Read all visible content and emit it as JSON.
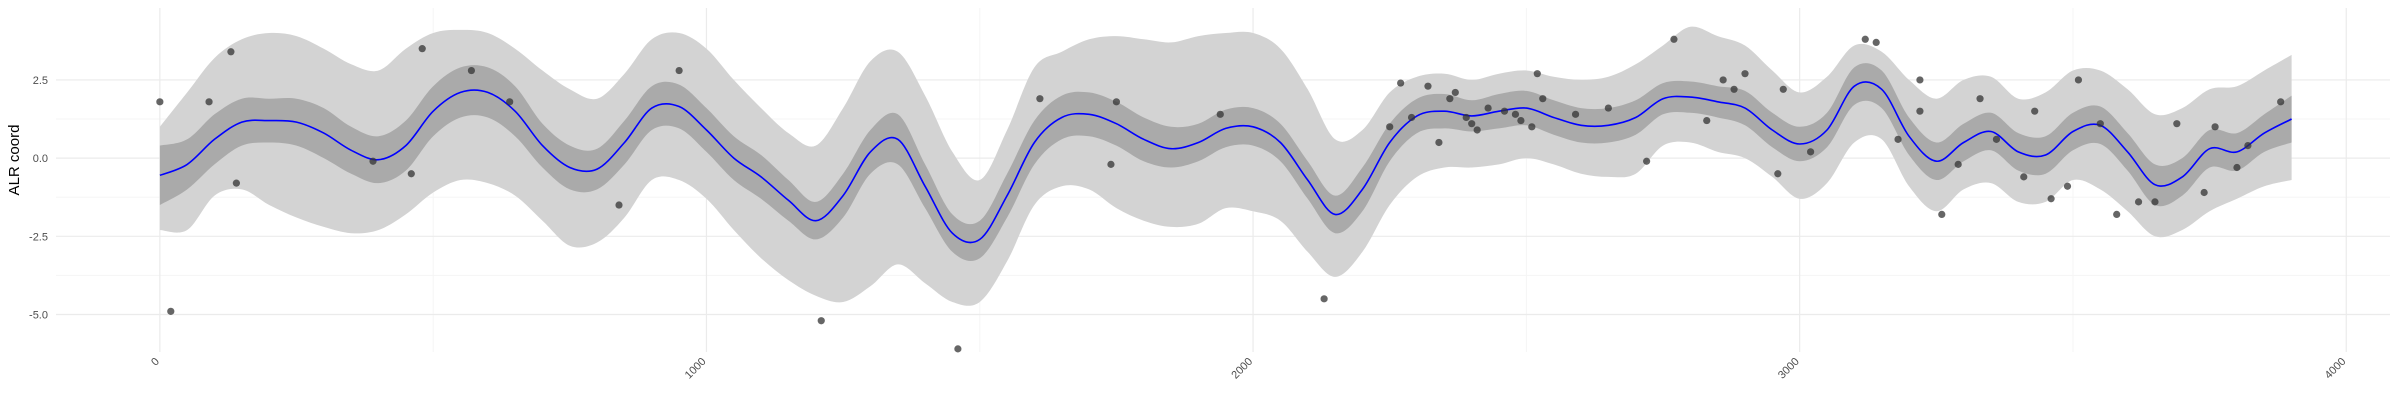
{
  "chart_data": {
    "type": "line",
    "title": "",
    "xlabel": "",
    "ylabel": "ALR coord",
    "xlim": [
      -190,
      4080
    ],
    "ylim": [
      -6.2,
      4.8
    ],
    "x_ticks": [
      0,
      1000,
      2000,
      3000,
      4000
    ],
    "x_tick_labels": [
      "0",
      "1000",
      "2000",
      "3000",
      "4000"
    ],
    "y_ticks": [
      -5.0,
      -2.5,
      0.0,
      2.5
    ],
    "y_tick_labels": [
      "-5.0",
      "-2.5",
      "0.0",
      "2.5"
    ],
    "grid": true,
    "colors": {
      "line": "#0000ff",
      "inner_band": "#aaaaaa",
      "outer_band": "#d3d3d3",
      "points": "#333333",
      "grid_major": "#ebebeb",
      "grid_minor": "#f5f5f5"
    },
    "series": [
      {
        "role": "mean",
        "x": [
          0,
          50,
          100,
          150,
          200,
          250,
          300,
          350,
          400,
          450,
          500,
          550,
          600,
          650,
          700,
          750,
          800,
          850,
          900,
          950,
          1000,
          1050,
          1100,
          1150,
          1200,
          1250,
          1300,
          1350,
          1400,
          1450,
          1500,
          1550,
          1600,
          1650,
          1700,
          1750,
          1800,
          1850,
          1900,
          1950,
          2000,
          2050,
          2100,
          2150,
          2200,
          2250,
          2300,
          2350,
          2400,
          2450,
          2500,
          2550,
          2600,
          2650,
          2700,
          2750,
          2800,
          2850,
          2900,
          2950,
          3000,
          3050,
          3100,
          3150,
          3200,
          3250,
          3300,
          3350,
          3400,
          3450,
          3500,
          3550,
          3600,
          3650,
          3700,
          3750,
          3800,
          3850,
          3900
        ],
        "y": [
          -0.55,
          -0.2,
          0.6,
          1.15,
          1.2,
          1.15,
          0.8,
          0.25,
          -0.05,
          0.4,
          1.5,
          2.1,
          2.1,
          1.5,
          0.4,
          -0.3,
          -0.35,
          0.5,
          1.6,
          1.65,
          0.9,
          0.0,
          -0.6,
          -1.35,
          -2.0,
          -1.2,
          0.2,
          0.6,
          -0.9,
          -2.4,
          -2.6,
          -1.2,
          0.5,
          1.3,
          1.4,
          1.1,
          0.6,
          0.3,
          0.5,
          0.95,
          1.0,
          0.5,
          -0.7,
          -1.8,
          -1.0,
          0.5,
          1.35,
          1.5,
          1.35,
          1.5,
          1.6,
          1.3,
          1.05,
          1.05,
          1.3,
          1.9,
          1.95,
          1.8,
          1.6,
          0.9,
          0.45,
          0.9,
          2.3,
          2.2,
          0.7,
          -0.1,
          0.5,
          0.85,
          0.2,
          0.1,
          0.85,
          1.05,
          0.2,
          -0.85,
          -0.6,
          0.3,
          0.2,
          0.8,
          1.25
        ]
      },
      {
        "role": "inner_band",
        "lower": [
          -1.5,
          -1.0,
          -0.2,
          0.4,
          0.5,
          0.4,
          0.0,
          -0.5,
          -0.8,
          -0.4,
          0.7,
          1.3,
          1.3,
          0.7,
          -0.3,
          -1.0,
          -1.0,
          -0.2,
          0.9,
          0.95,
          0.2,
          -0.7,
          -1.3,
          -2.0,
          -2.6,
          -1.9,
          -0.5,
          -0.2,
          -1.6,
          -3.0,
          -3.2,
          -1.9,
          -0.2,
          0.6,
          0.7,
          0.4,
          -0.1,
          -0.3,
          -0.1,
          0.35,
          0.4,
          -0.1,
          -1.3,
          -2.4,
          -1.7,
          -0.1,
          0.8,
          0.95,
          0.85,
          0.95,
          1.05,
          0.75,
          0.5,
          0.5,
          0.75,
          1.4,
          1.45,
          1.3,
          1.05,
          0.35,
          -0.1,
          0.35,
          1.7,
          1.6,
          0.1,
          -0.7,
          -0.1,
          0.25,
          -0.4,
          -0.5,
          0.25,
          0.45,
          -0.4,
          -1.5,
          -1.2,
          -0.3,
          -0.4,
          0.2,
          0.5
        ],
        "upper": [
          0.4,
          0.6,
          1.4,
          1.9,
          1.9,
          1.9,
          1.6,
          1.0,
          0.7,
          1.2,
          2.3,
          2.9,
          2.9,
          2.3,
          1.1,
          0.4,
          0.3,
          1.2,
          2.3,
          2.35,
          1.6,
          0.7,
          0.1,
          -0.7,
          -1.4,
          -0.5,
          0.9,
          1.4,
          -0.2,
          -1.8,
          -2.0,
          -0.5,
          1.2,
          2.0,
          2.1,
          1.8,
          1.3,
          1.0,
          1.1,
          1.55,
          1.6,
          1.1,
          -0.1,
          -1.2,
          -0.3,
          1.1,
          1.9,
          2.05,
          1.85,
          2.05,
          2.15,
          1.85,
          1.6,
          1.6,
          1.85,
          2.4,
          2.45,
          2.3,
          2.15,
          1.45,
          1.0,
          1.45,
          2.9,
          2.8,
          1.3,
          0.5,
          1.1,
          1.45,
          0.8,
          0.7,
          1.45,
          1.65,
          0.8,
          -0.2,
          0.0,
          0.9,
          0.8,
          1.4,
          2.0
        ]
      },
      {
        "role": "outer_band",
        "lower": [
          -2.3,
          -2.3,
          -1.2,
          -1.0,
          -1.5,
          -1.9,
          -2.2,
          -2.4,
          -2.3,
          -1.8,
          -1.1,
          -0.7,
          -0.8,
          -1.2,
          -2.0,
          -2.8,
          -2.7,
          -1.9,
          -0.7,
          -0.7,
          -1.3,
          -2.3,
          -3.2,
          -3.9,
          -4.4,
          -4.6,
          -4.1,
          -3.4,
          -4.0,
          -4.6,
          -4.6,
          -3.3,
          -1.5,
          -0.9,
          -1.0,
          -1.6,
          -2.0,
          -2.2,
          -2.1,
          -1.6,
          -1.7,
          -2.0,
          -3.0,
          -3.8,
          -3.0,
          -1.5,
          -0.6,
          -0.3,
          -0.3,
          -0.2,
          0.0,
          -0.2,
          -0.5,
          -0.6,
          -0.5,
          0.4,
          0.5,
          0.2,
          0.0,
          -0.6,
          -1.3,
          -0.8,
          0.5,
          0.6,
          -0.9,
          -1.7,
          -1.0,
          -0.8,
          -1.4,
          -1.4,
          -0.7,
          -1.0,
          -1.7,
          -2.5,
          -2.3,
          -1.7,
          -1.3,
          -0.9,
          -0.7
        ],
        "upper": [
          1.0,
          2.1,
          3.2,
          3.8,
          4.0,
          3.9,
          3.5,
          3.0,
          2.8,
          3.5,
          4.0,
          4.1,
          4.0,
          3.5,
          2.8,
          2.2,
          1.9,
          2.7,
          3.8,
          4.0,
          3.5,
          2.5,
          1.6,
          0.8,
          0.4,
          1.6,
          3.1,
          3.4,
          2.0,
          0.2,
          -0.7,
          0.9,
          2.9,
          3.4,
          3.8,
          3.9,
          3.8,
          3.7,
          3.9,
          4.0,
          4.0,
          3.5,
          2.2,
          0.6,
          0.9,
          2.1,
          2.6,
          2.7,
          2.5,
          2.7,
          2.8,
          2.6,
          2.5,
          2.6,
          3.0,
          3.6,
          4.2,
          3.9,
          3.6,
          2.8,
          2.1,
          2.6,
          3.6,
          3.4,
          2.5,
          1.9,
          2.5,
          2.6,
          1.9,
          2.1,
          2.8,
          2.8,
          2.2,
          1.4,
          1.6,
          2.2,
          2.3,
          2.8,
          3.3
        ]
      },
      {
        "role": "observations",
        "points": [
          [
            0,
            1.8
          ],
          [
            20,
            -4.9
          ],
          [
            90,
            1.8
          ],
          [
            130,
            3.4
          ],
          [
            140,
            -0.8
          ],
          [
            390,
            -0.1
          ],
          [
            460,
            -0.5
          ],
          [
            480,
            3.5
          ],
          [
            570,
            2.8
          ],
          [
            640,
            1.8
          ],
          [
            840,
            -1.5
          ],
          [
            950,
            2.8
          ],
          [
            1210,
            -5.2
          ],
          [
            1460,
            -6.1
          ],
          [
            1610,
            1.9
          ],
          [
            1740,
            -0.2
          ],
          [
            1750,
            1.8
          ],
          [
            1940,
            1.4
          ],
          [
            2130,
            -4.5
          ],
          [
            2250,
            1.0
          ],
          [
            2270,
            2.4
          ],
          [
            2290,
            1.3
          ],
          [
            2320,
            2.3
          ],
          [
            2340,
            0.5
          ],
          [
            2360,
            1.9
          ],
          [
            2370,
            2.1
          ],
          [
            2390,
            1.3
          ],
          [
            2400,
            1.1
          ],
          [
            2410,
            0.9
          ],
          [
            2430,
            1.6
          ],
          [
            2460,
            1.5
          ],
          [
            2480,
            1.4
          ],
          [
            2490,
            1.2
          ],
          [
            2510,
            1.0
          ],
          [
            2520,
            2.7
          ],
          [
            2530,
            1.9
          ],
          [
            2590,
            1.4
          ],
          [
            2650,
            1.6
          ],
          [
            2720,
            -0.1
          ],
          [
            2770,
            3.8
          ],
          [
            2830,
            1.2
          ],
          [
            2860,
            2.5
          ],
          [
            2880,
            2.2
          ],
          [
            2900,
            2.7
          ],
          [
            2960,
            -0.5
          ],
          [
            2970,
            2.2
          ],
          [
            3020,
            0.2
          ],
          [
            3120,
            3.8
          ],
          [
            3140,
            3.7
          ],
          [
            3180,
            0.6
          ],
          [
            3220,
            2.5
          ],
          [
            3220,
            1.5
          ],
          [
            3260,
            -1.8
          ],
          [
            3290,
            -0.2
          ],
          [
            3330,
            1.9
          ],
          [
            3360,
            0.6
          ],
          [
            3410,
            -0.6
          ],
          [
            3430,
            1.5
          ],
          [
            3460,
            -1.3
          ],
          [
            3490,
            -0.9
          ],
          [
            3510,
            2.5
          ],
          [
            3550,
            1.1
          ],
          [
            3580,
            -1.8
          ],
          [
            3620,
            -1.4
          ],
          [
            3650,
            -1.4
          ],
          [
            3690,
            1.1
          ],
          [
            3740,
            -1.1
          ],
          [
            3760,
            1.0
          ],
          [
            3800,
            -0.3
          ],
          [
            3820,
            0.4
          ],
          [
            3880,
            1.8
          ]
        ]
      }
    ]
  }
}
